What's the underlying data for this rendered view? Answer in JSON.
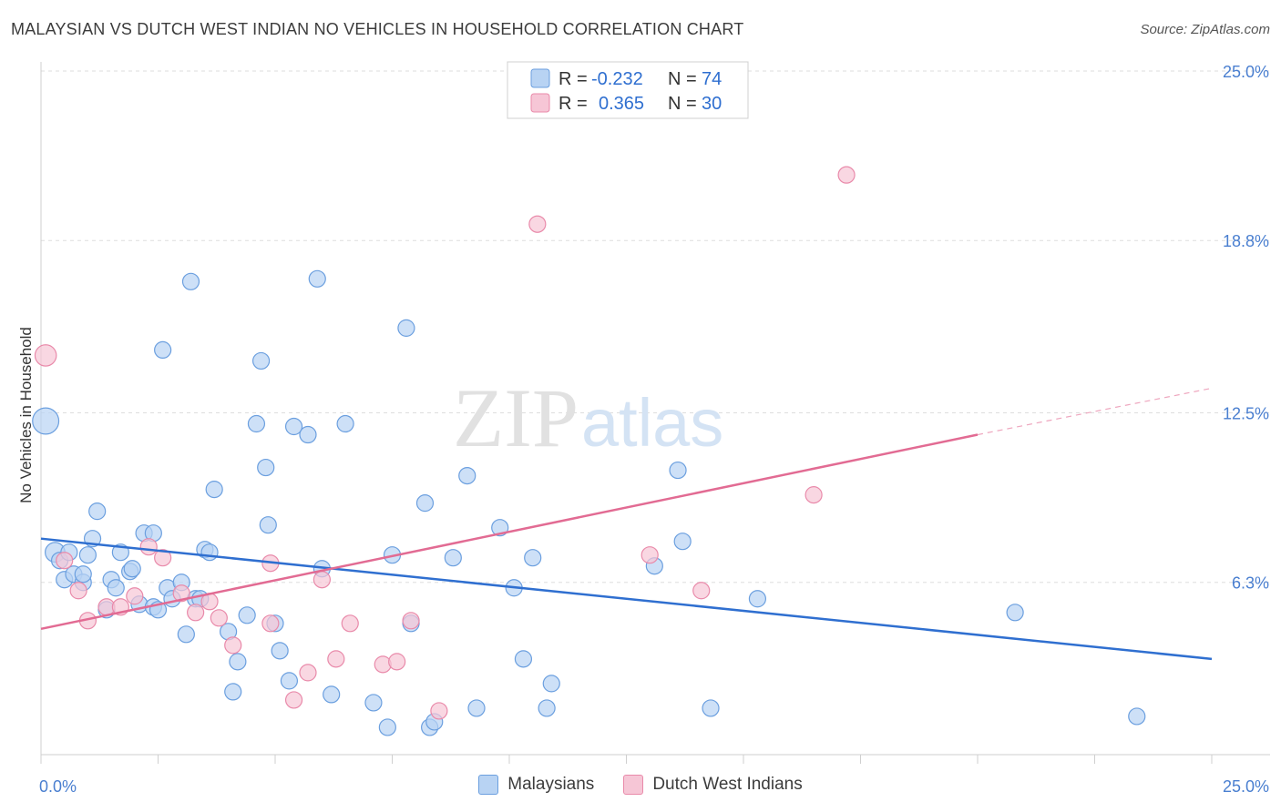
{
  "header": {
    "title": "MALAYSIAN VS DUTCH WEST INDIAN NO VEHICLES IN HOUSEHOLD CORRELATION CHART",
    "source": "Source: ZipAtlas.com"
  },
  "watermark": {
    "zip": "ZIP",
    "atlas": "atlas"
  },
  "colors": {
    "malaysian_fill": "#b8d3f3",
    "malaysian_stroke": "#6b9fdf",
    "malaysian_line": "#2f6fd0",
    "dutch_fill": "#f6c6d6",
    "dutch_stroke": "#e98aaa",
    "dutch_line": "#e26b93",
    "tick_label": "#4a7fd0",
    "grid": "#dddddd"
  },
  "legend": {
    "rows": [
      {
        "r_label": "R =",
        "r_value": "-0.232",
        "n_label": "N =",
        "n_value": "74"
      },
      {
        "r_label": "R =",
        "r_value": "0.365",
        "n_label": "N =",
        "n_value": "30"
      }
    ]
  },
  "bottom_legend": [
    "Malaysians",
    "Dutch West Indians"
  ],
  "chart_data": {
    "type": "scatter",
    "title": "MALAYSIAN VS DUTCH WEST INDIAN NO VEHICLES IN HOUSEHOLD CORRELATION CHART",
    "xlabel": "",
    "ylabel": "No Vehicles in Household",
    "xlim": [
      0,
      25
    ],
    "ylim": [
      0,
      25
    ],
    "x_tick_labels": [
      "0.0%",
      "25.0%"
    ],
    "y_ticks": [
      6.3,
      12.5,
      18.8,
      25.0
    ],
    "y_tick_labels": [
      "6.3%",
      "12.5%",
      "18.8%",
      "25.0%"
    ],
    "grid": "horizontal dashed",
    "legend_placement": "top-center",
    "series": [
      {
        "name": "Malaysians",
        "r": -0.232,
        "n": 74,
        "trend": {
          "x": [
            0,
            25
          ],
          "y": [
            7.9,
            3.5
          ]
        },
        "points": [
          [
            0.1,
            12.2,
            1.6
          ],
          [
            0.3,
            7.4,
            1.2
          ],
          [
            0.4,
            7.1,
            1
          ],
          [
            0.5,
            6.4,
            1
          ],
          [
            0.6,
            7.4,
            1
          ],
          [
            0.7,
            6.6,
            1
          ],
          [
            0.9,
            6.3,
            1
          ],
          [
            0.9,
            6.6,
            1
          ],
          [
            1.0,
            7.3,
            1
          ],
          [
            1.1,
            7.9,
            1
          ],
          [
            1.2,
            8.9,
            1
          ],
          [
            1.4,
            5.3,
            1
          ],
          [
            1.5,
            6.4,
            1
          ],
          [
            1.6,
            6.1,
            1
          ],
          [
            1.7,
            7.4,
            1
          ],
          [
            1.9,
            6.7,
            1
          ],
          [
            1.95,
            6.8,
            1
          ],
          [
            2.1,
            5.5,
            1
          ],
          [
            2.2,
            8.1,
            1
          ],
          [
            2.4,
            5.4,
            1
          ],
          [
            2.4,
            8.1,
            1
          ],
          [
            2.5,
            5.3,
            1
          ],
          [
            2.6,
            14.8,
            1
          ],
          [
            2.7,
            6.1,
            1
          ],
          [
            2.8,
            5.7,
            1
          ],
          [
            3.0,
            6.3,
            1
          ],
          [
            3.1,
            4.4,
            1
          ],
          [
            3.2,
            17.3,
            1
          ],
          [
            3.3,
            5.7,
            1
          ],
          [
            3.4,
            5.7,
            1
          ],
          [
            3.5,
            7.5,
            1
          ],
          [
            3.6,
            7.4,
            1
          ],
          [
            3.7,
            9.7,
            1
          ],
          [
            4.0,
            4.5,
            1
          ],
          [
            4.1,
            2.3,
            1
          ],
          [
            4.2,
            3.4,
            1
          ],
          [
            4.4,
            5.1,
            1
          ],
          [
            4.6,
            12.1,
            1
          ],
          [
            4.7,
            14.4,
            1
          ],
          [
            4.8,
            10.5,
            1
          ],
          [
            4.85,
            8.4,
            1
          ],
          [
            5.0,
            4.8,
            1
          ],
          [
            5.1,
            3.8,
            1
          ],
          [
            5.3,
            2.7,
            1
          ],
          [
            5.4,
            12.0,
            1
          ],
          [
            5.7,
            11.7,
            1
          ],
          [
            5.9,
            17.4,
            1
          ],
          [
            6.0,
            6.8,
            1
          ],
          [
            6.2,
            2.2,
            1
          ],
          [
            6.5,
            12.1,
            1
          ],
          [
            7.1,
            1.9,
            1
          ],
          [
            7.4,
            1.0,
            1
          ],
          [
            7.5,
            7.3,
            1
          ],
          [
            7.8,
            15.6,
            1
          ],
          [
            7.9,
            4.8,
            1
          ],
          [
            8.2,
            9.2,
            1
          ],
          [
            8.3,
            1.0,
            1
          ],
          [
            8.4,
            1.2,
            1
          ],
          [
            8.8,
            7.2,
            1
          ],
          [
            9.1,
            10.2,
            1
          ],
          [
            9.3,
            1.7,
            1
          ],
          [
            9.8,
            8.3,
            1
          ],
          [
            10.1,
            6.1,
            1
          ],
          [
            10.3,
            3.5,
            1
          ],
          [
            10.5,
            7.2,
            1
          ],
          [
            10.8,
            1.7,
            1
          ],
          [
            10.9,
            2.6,
            1
          ],
          [
            13.1,
            6.9,
            1
          ],
          [
            13.6,
            10.4,
            1
          ],
          [
            13.7,
            7.8,
            1
          ],
          [
            14.3,
            1.7,
            1
          ],
          [
            15.3,
            5.7,
            1
          ],
          [
            20.8,
            5.2,
            1
          ],
          [
            23.4,
            1.4,
            1
          ]
        ]
      },
      {
        "name": "Dutch West Indians",
        "r": 0.365,
        "n": 30,
        "trend": {
          "x": [
            0,
            20
          ],
          "y": [
            4.6,
            11.7
          ]
        },
        "trend_dashed": {
          "x": [
            20,
            25
          ],
          "y": [
            11.7,
            13.4
          ]
        },
        "points": [
          [
            0.1,
            14.6,
            1.3
          ],
          [
            0.5,
            7.1,
            1
          ],
          [
            0.8,
            6.0,
            1
          ],
          [
            1.0,
            4.9,
            1
          ],
          [
            1.4,
            5.4,
            1
          ],
          [
            1.7,
            5.4,
            1
          ],
          [
            2.0,
            5.8,
            1
          ],
          [
            2.3,
            7.6,
            1
          ],
          [
            2.6,
            7.2,
            1
          ],
          [
            3.0,
            5.9,
            1
          ],
          [
            3.3,
            5.2,
            1
          ],
          [
            3.6,
            5.6,
            1
          ],
          [
            3.8,
            5.0,
            1
          ],
          [
            4.1,
            4.0,
            1
          ],
          [
            4.9,
            4.8,
            1
          ],
          [
            4.9,
            7.0,
            1
          ],
          [
            5.4,
            2.0,
            1
          ],
          [
            5.7,
            3.0,
            1
          ],
          [
            6.0,
            6.4,
            1
          ],
          [
            6.3,
            3.5,
            1
          ],
          [
            6.6,
            4.8,
            1
          ],
          [
            7.3,
            3.3,
            1
          ],
          [
            7.6,
            3.4,
            1
          ],
          [
            7.9,
            4.9,
            1
          ],
          [
            8.5,
            1.6,
            1
          ],
          [
            10.6,
            19.4,
            1
          ],
          [
            13.0,
            7.3,
            1
          ],
          [
            14.1,
            6.0,
            1
          ],
          [
            16.5,
            9.5,
            1
          ],
          [
            17.2,
            21.2,
            1
          ]
        ]
      }
    ]
  }
}
